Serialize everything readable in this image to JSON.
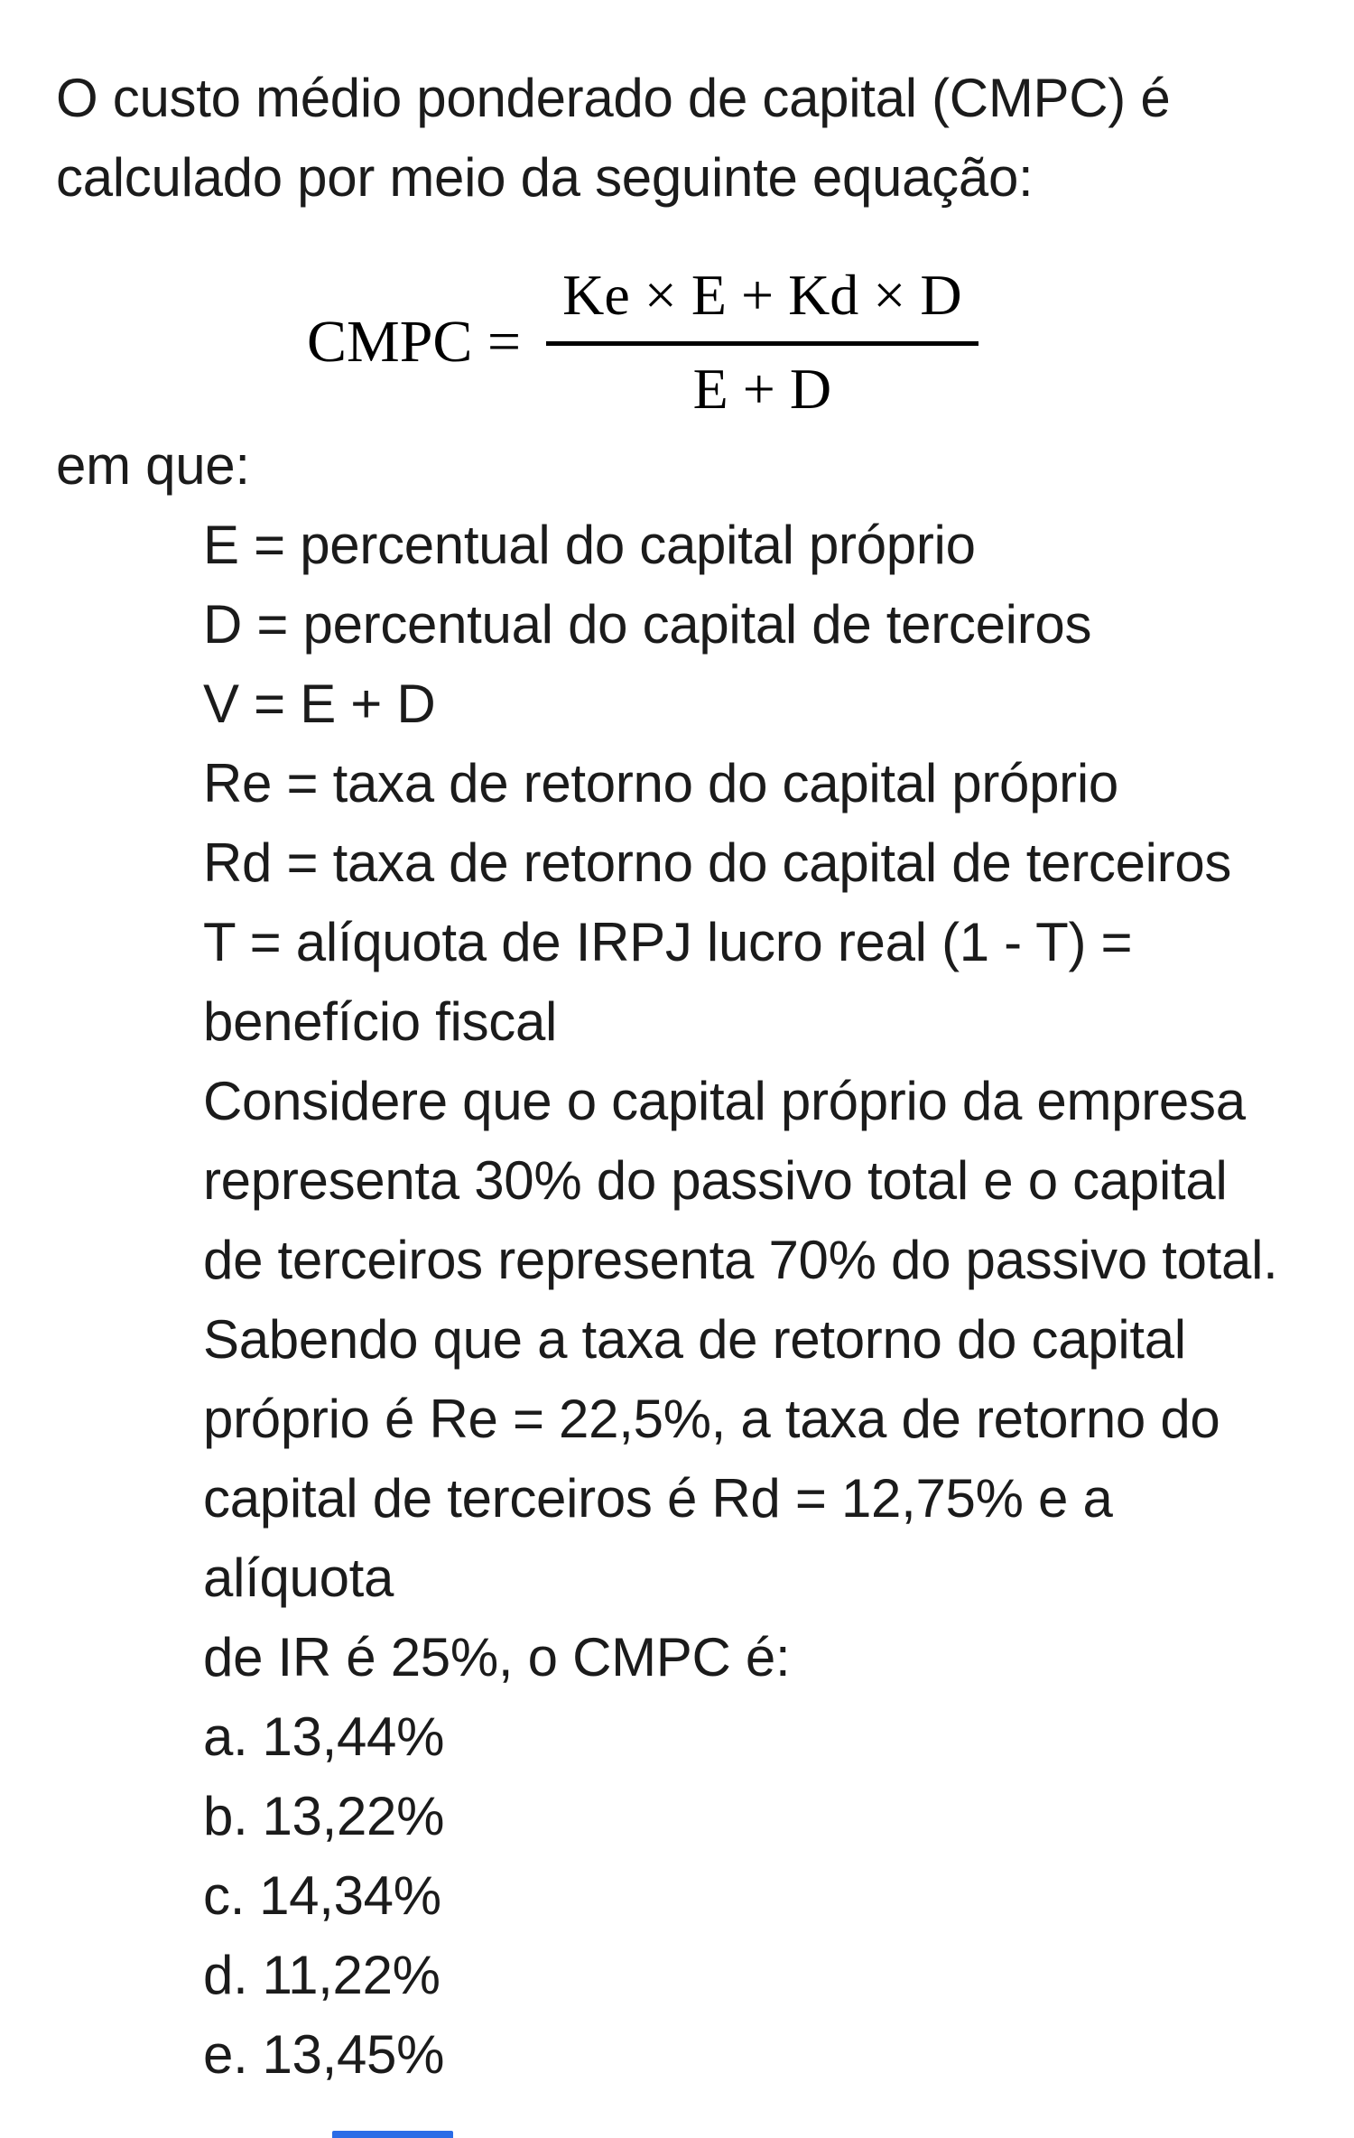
{
  "question": {
    "intro_lines": [
      "O custo médio ponderado de capital (CMPC) é",
      "calculado por meio da seguinte equação:"
    ],
    "formula": {
      "lhs": "CMPC =",
      "numerator": "Ke × E + Kd × D",
      "denominator": "E + D"
    },
    "where_label": "em que:",
    "definitions": [
      "E = percentual do capital próprio",
      "D = percentual do capital de terceiros",
      "V = E + D",
      "Re = taxa de retorno do capital próprio",
      "Rd = taxa de retorno do capital de terceiros",
      "T = alíquota de IRPJ lucro real (1 - T) =",
      "benefício fiscal"
    ],
    "body_lines": [
      "Considere que o capital próprio da empresa",
      "representa 30% do passivo total e o capital",
      "de terceiros representa 70% do passivo total.",
      "Sabendo que a taxa de retorno do capital",
      "próprio é Re = 22,5%, a taxa de retorno do",
      "capital de terceiros é Rd = 12,75% e a alíquota",
      "de IR é 25%, o CMPC é:"
    ],
    "options": [
      {
        "letter": "a.",
        "value": "13,44%"
      },
      {
        "letter": "b.",
        "value": "13,22%"
      },
      {
        "letter": "c.",
        "value": "14,34%"
      },
      {
        "letter": "d.",
        "value": "11,22%"
      },
      {
        "letter": "e.",
        "value": "13,45%"
      }
    ]
  },
  "colors": {
    "background": "#ffffff",
    "text": "#1b1b1b",
    "formula": "#000000",
    "accent_bar": "#2b6ce6"
  }
}
